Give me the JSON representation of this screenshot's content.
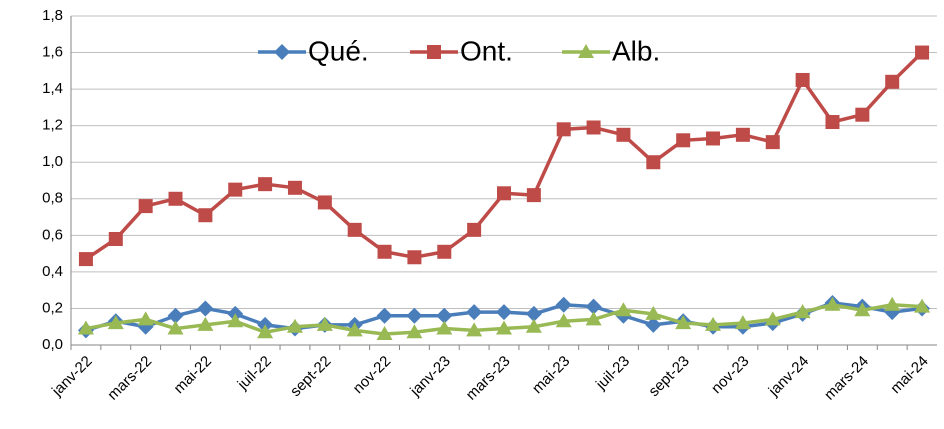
{
  "chart_data": {
    "type": "line",
    "categories": [
      "janv-22",
      null,
      "mars-22",
      null,
      "mai-22",
      null,
      "juil-22",
      null,
      "sept-22",
      null,
      "nov-22",
      null,
      "janv-23",
      null,
      "mars-23",
      null,
      "mai-23",
      null,
      "juil-23",
      null,
      "sept-23",
      null,
      "nov-23",
      null,
      "janv-24",
      null,
      "mars-24",
      null,
      "mai-24"
    ],
    "series": [
      {
        "name": "Qué.",
        "color": "#4a7ebb",
        "marker": "diamond",
        "values": [
          0.08,
          0.13,
          0.1,
          0.16,
          0.2,
          0.17,
          0.11,
          0.09,
          0.11,
          0.11,
          0.16,
          0.16,
          0.16,
          0.18,
          0.18,
          0.17,
          0.22,
          0.21,
          0.16,
          0.11,
          0.13,
          0.1,
          0.1,
          0.12,
          0.17,
          0.23,
          0.21,
          0.18,
          0.2
        ]
      },
      {
        "name": "Ont.",
        "color": "#be4b48",
        "marker": "square",
        "values": [
          0.47,
          0.58,
          0.76,
          0.8,
          0.71,
          0.85,
          0.88,
          0.86,
          0.78,
          0.63,
          0.51,
          0.48,
          0.51,
          0.63,
          0.83,
          0.82,
          1.18,
          1.19,
          1.15,
          1.0,
          1.12,
          1.13,
          1.15,
          1.11,
          1.45,
          1.22,
          1.26,
          1.44,
          1.6
        ]
      },
      {
        "name": "Alb.",
        "color": "#98b954",
        "marker": "triangle",
        "values": [
          0.09,
          0.12,
          0.14,
          0.09,
          0.11,
          0.13,
          0.07,
          0.1,
          0.11,
          0.08,
          0.06,
          0.07,
          0.09,
          0.08,
          0.09,
          0.1,
          0.13,
          0.14,
          0.19,
          0.17,
          0.12,
          0.11,
          0.12,
          0.14,
          0.18,
          0.22,
          0.19,
          0.22,
          0.21
        ]
      }
    ],
    "ylim": [
      0,
      1.8
    ],
    "yticks": [
      {
        "value": 0,
        "label": "0,0"
      },
      {
        "value": 0.2,
        "label": "0,2"
      },
      {
        "value": 0.4,
        "label": "0,4"
      },
      {
        "value": 0.6,
        "label": "0,6"
      },
      {
        "value": 0.8,
        "label": "0,8"
      },
      {
        "value": 1.0,
        "label": "1,0"
      },
      {
        "value": 1.2,
        "label": "1,2"
      },
      {
        "value": 1.4,
        "label": "1,4"
      },
      {
        "value": 1.6,
        "label": "1,6"
      },
      {
        "value": 1.8,
        "label": "1,8"
      }
    ],
    "grid": true,
    "legend": "top"
  }
}
